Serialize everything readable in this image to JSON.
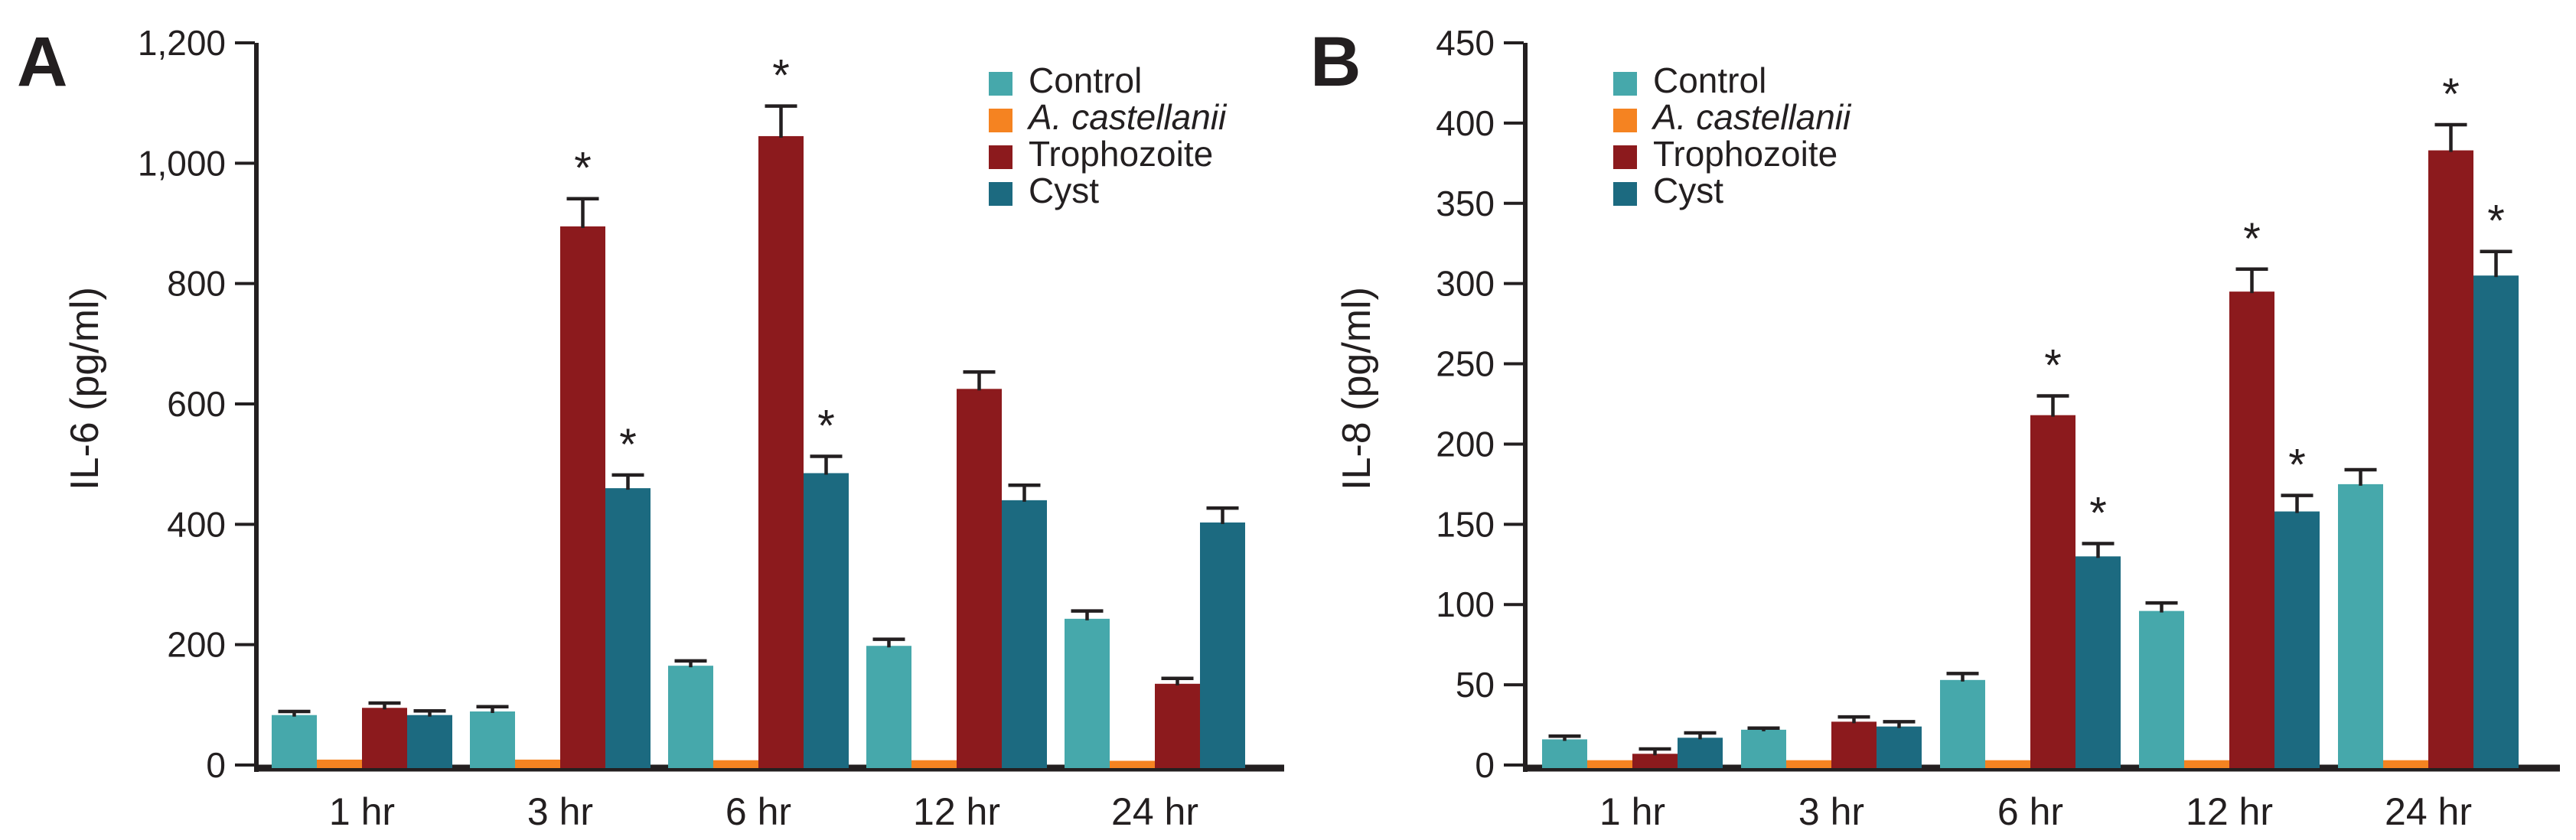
{
  "figure": {
    "significance_marker": "*",
    "ink_color": "#231F20",
    "background_color": "#FFFFFF"
  },
  "chart_data": [
    {
      "type": "bar",
      "panel_label": "A",
      "title": "",
      "xlabel": "",
      "ylabel": "IL-6 (pg/ml)",
      "ylim": [
        0,
        1200
      ],
      "ytick_step": 200,
      "ytick_labels": [
        "0",
        "200",
        "400",
        "600",
        "800",
        "1,000",
        "1,200"
      ],
      "categories": [
        "1 hr",
        "3 hr",
        "6 hr",
        "12 hr",
        "24 hr"
      ],
      "grid": false,
      "legend_position": "inner-top-right",
      "series": [
        {
          "name": "Control",
          "color": "#46A8AB",
          "italic": false,
          "values": [
            83,
            89,
            165,
            198,
            243
          ],
          "errors": [
            6,
            8,
            8,
            11,
            13
          ],
          "significant": [
            false,
            false,
            false,
            false,
            false
          ]
        },
        {
          "name": "A. castellanii",
          "color": "#F58321",
          "italic": true,
          "values": [
            9,
            9,
            8,
            8,
            7
          ],
          "errors": [
            0,
            0,
            0,
            0,
            0
          ],
          "significant": [
            false,
            false,
            false,
            false,
            false
          ]
        },
        {
          "name": "Trophozoite",
          "color": "#8C1A1D",
          "italic": false,
          "values": [
            95,
            895,
            1045,
            625,
            135
          ],
          "errors": [
            8,
            46,
            50,
            28,
            9
          ],
          "significant": [
            false,
            true,
            true,
            false,
            false
          ]
        },
        {
          "name": "Cyst",
          "color": "#1C6A80",
          "italic": false,
          "values": [
            83,
            460,
            485,
            440,
            403
          ],
          "errors": [
            7,
            22,
            28,
            25,
            24
          ],
          "significant": [
            false,
            true,
            true,
            false,
            false
          ]
        }
      ]
    },
    {
      "type": "bar",
      "panel_label": "B",
      "title": "",
      "xlabel": "",
      "ylabel": "IL-8 (pg/ml)",
      "ylim": [
        0,
        450
      ],
      "ytick_step": 50,
      "ytick_labels": [
        "0",
        "50",
        "100",
        "150",
        "200",
        "250",
        "300",
        "350",
        "400",
        "450"
      ],
      "categories": [
        "1 hr",
        "3 hr",
        "6 hr",
        "12 hr",
        "24 hr"
      ],
      "grid": false,
      "legend_position": "inner-top-left",
      "series": [
        {
          "name": "Control",
          "color": "#46A8AB",
          "italic": false,
          "values": [
            16,
            22,
            53,
            96,
            175
          ],
          "errors": [
            2,
            1,
            4,
            5,
            9
          ],
          "significant": [
            false,
            false,
            false,
            false,
            false
          ]
        },
        {
          "name": "A. castellanii",
          "color": "#F58321",
          "italic": true,
          "values": [
            3,
            3,
            3,
            3,
            3
          ],
          "errors": [
            0,
            0,
            0,
            0,
            0
          ],
          "significant": [
            false,
            false,
            false,
            false,
            false
          ]
        },
        {
          "name": "Trophozoite",
          "color": "#8C1A1D",
          "italic": false,
          "values": [
            7,
            27,
            218,
            295,
            383
          ],
          "errors": [
            3,
            3,
            12,
            14,
            16
          ],
          "significant": [
            false,
            false,
            true,
            true,
            true
          ]
        },
        {
          "name": "Cyst",
          "color": "#1C6A80",
          "italic": false,
          "values": [
            17,
            24,
            130,
            158,
            305
          ],
          "errors": [
            3,
            3,
            8,
            10,
            15
          ],
          "significant": [
            false,
            false,
            true,
            true,
            true
          ]
        }
      ]
    }
  ]
}
